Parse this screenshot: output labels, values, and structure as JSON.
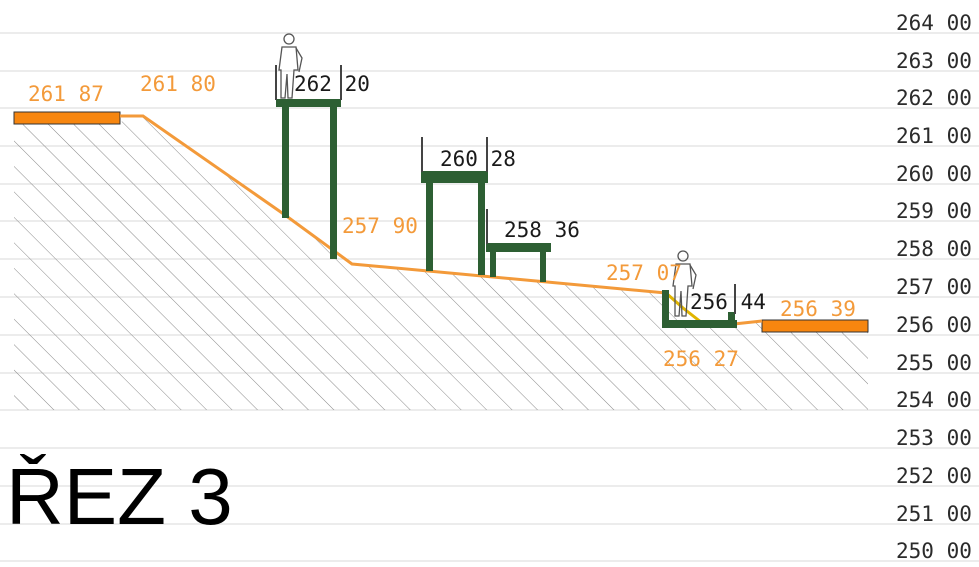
{
  "title": "ŘEZ 3",
  "elevation_scale": {
    "labels": [
      "264 00",
      "263 00",
      "262 00",
      "261 00",
      "260 00",
      "259 00",
      "258 00",
      "257 00",
      "256 00",
      "255 00",
      "254 00",
      "253 00",
      "252 00",
      "251 00",
      "250 00"
    ]
  },
  "terrain_labels": {
    "left_plateau": "261 87",
    "top_slope": "261 80",
    "slope_foot": "257 90",
    "upper_ditch": "257 07",
    "ditch_bottom": "256 27",
    "right_plateau": "256 39"
  },
  "platform_labels": {
    "tower_high": "262 20",
    "tower_mid": "260 28",
    "tower_low": "258 36",
    "sunken_deck": "256 44"
  },
  "colors": {
    "terrain_line": "#f39a3a",
    "plateau_fill": "#f7860f",
    "structure": "#2d5f33",
    "ditch_line": "#e0b400",
    "hatch": "#8a8a8a",
    "grid": "#d9d9d9"
  }
}
